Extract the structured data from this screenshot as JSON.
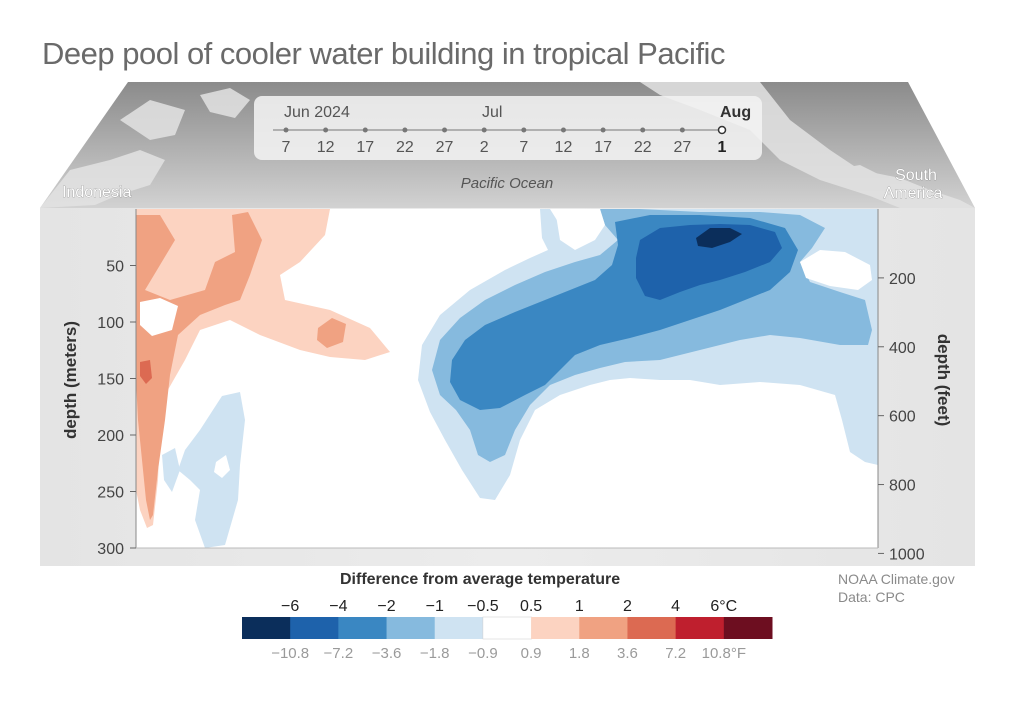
{
  "title": "Deep pool of cooler water building in tropical Pacific",
  "credit": {
    "source": "NOAA Climate.gov",
    "data": "Data: CPC"
  },
  "timeline": {
    "month_labels": [
      "Jun 2024",
      "Jul",
      "Aug"
    ],
    "day_labels": [
      "7",
      "12",
      "17",
      "22",
      "27",
      "2",
      "7",
      "12",
      "17",
      "22",
      "27",
      "1"
    ],
    "selected_index": 11
  },
  "map_labels": {
    "west": "Indonesia",
    "center": "Pacific Ocean",
    "east": "South America"
  },
  "colors": {
    "neg_6": "#0b2e5b",
    "neg_4": "#1e62ab",
    "neg_2": "#3a87c2",
    "neg_1": "#86bade",
    "neg_05": "#cfe3f2",
    "neutral": "#ffffff",
    "pos_05": "#fcd3c1",
    "pos_1": "#f0a282",
    "pos_2": "#dc6a52",
    "pos_4": "#bf1f2e",
    "pos_6": "#6d0e20"
  },
  "chart_data": {
    "type": "heatmap",
    "title": "",
    "xlabel": "",
    "ylabel": "depth (meters)",
    "y2label": "depth (feet)",
    "ylim": [
      0,
      300
    ],
    "y_ticks": [
      50,
      100,
      150,
      200,
      250,
      300
    ],
    "y2_ticks": [
      200,
      400,
      600,
      800,
      1000
    ],
    "x_labels": [
      "Indonesia",
      "Pacific Ocean",
      "South America"
    ],
    "series": [
      {
        "name": "−6°C anomaly core",
        "bin": "neg_6",
        "center_x": 0.82,
        "center_depth": 25
      },
      {
        "name": "cold tongue",
        "bin": "neg_4",
        "from_depth": 40,
        "to_depth": 130
      }
    ],
    "legend": {
      "title": "Difference from average temperature",
      "celsius_labels": [
        "−6",
        "−4",
        "−2",
        "−1",
        "−0.5",
        "0.5",
        "1",
        "2",
        "4",
        "6°C"
      ],
      "fahrenheit_labels": [
        "−10.8",
        "−7.2",
        "−3.6",
        "−1.8",
        "−0.9",
        "0.9",
        "1.8",
        "3.6",
        "7.2",
        "10.8°F"
      ],
      "bins": [
        "neg_6",
        "neg_4",
        "neg_2",
        "neg_1",
        "neg_05",
        "neutral",
        "pos_05",
        "pos_1",
        "pos_2",
        "pos_4",
        "pos_6"
      ]
    },
    "grid": false,
    "legend_position": "bottom"
  }
}
